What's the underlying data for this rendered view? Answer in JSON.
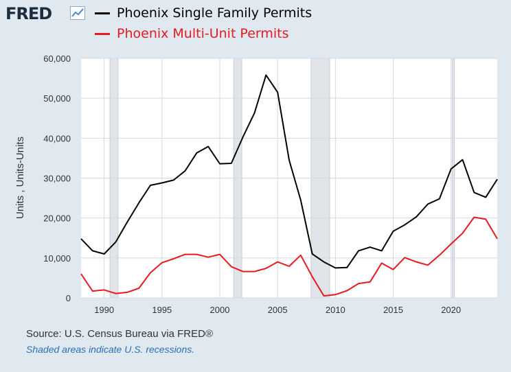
{
  "header": {
    "logo_text": "FRED",
    "logo_icon": "chart-line-icon"
  },
  "footer": {
    "source": "Source: U.S. Census Bureau via FRED®",
    "note": "Shaded areas indicate U.S. recessions."
  },
  "chart_data": {
    "type": "line",
    "ylabel": "Units , Units-Units",
    "xlim": [
      1988,
      2024
    ],
    "ylim": [
      0,
      60000
    ],
    "grid": true,
    "legend_position": "top",
    "x_ticks": [
      1990,
      1995,
      2000,
      2005,
      2010,
      2015,
      2020
    ],
    "y_ticks": [
      {
        "value": 0,
        "label": "0"
      },
      {
        "value": 10000,
        "label": "10,000"
      },
      {
        "value": 20000,
        "label": "20,000"
      },
      {
        "value": 30000,
        "label": "30,000"
      },
      {
        "value": 40000,
        "label": "40,000"
      },
      {
        "value": 50000,
        "label": "50,000"
      },
      {
        "value": 60000,
        "label": "60,000"
      }
    ],
    "recessions": [
      [
        1990.5,
        1991.2
      ],
      [
        2001.2,
        2001.9
      ],
      [
        2007.9,
        2009.5
      ],
      [
        2020.1,
        2020.3
      ]
    ],
    "x": [
      1988,
      1989,
      1990,
      1991,
      1992,
      1993,
      1994,
      1995,
      1996,
      1997,
      1998,
      1999,
      2000,
      2001,
      2002,
      2003,
      2004,
      2005,
      2006,
      2007,
      2008,
      2009,
      2010,
      2011,
      2012,
      2013,
      2014,
      2015,
      2016,
      2017,
      2018,
      2019,
      2020,
      2021,
      2022,
      2023,
      2024
    ],
    "series": [
      {
        "name": "Phoenix Single Family Permits",
        "color": "#000000",
        "values": [
          14800,
          11800,
          11000,
          14000,
          19000,
          23800,
          28200,
          28800,
          29500,
          31800,
          36300,
          37900,
          33600,
          33700,
          40300,
          46300,
          55800,
          51500,
          34500,
          24500,
          11000,
          9000,
          7500,
          7600,
          11800,
          12700,
          11800,
          16700,
          18300,
          20300,
          23500,
          24800,
          32300,
          34600,
          26400,
          25200,
          29700
        ]
      },
      {
        "name": "Phoenix Multi-Unit Permits",
        "color": "#e8191f",
        "values": [
          6000,
          1700,
          2000,
          1100,
          1400,
          2400,
          6300,
          8800,
          9800,
          10900,
          10900,
          10200,
          10900,
          7800,
          6600,
          6600,
          7400,
          9000,
          7900,
          10700,
          5300,
          500,
          800,
          1800,
          3600,
          4000,
          8700,
          7100,
          10100,
          9000,
          8200,
          10700,
          13500,
          16200,
          20200,
          19700,
          14800
        ]
      }
    ]
  }
}
